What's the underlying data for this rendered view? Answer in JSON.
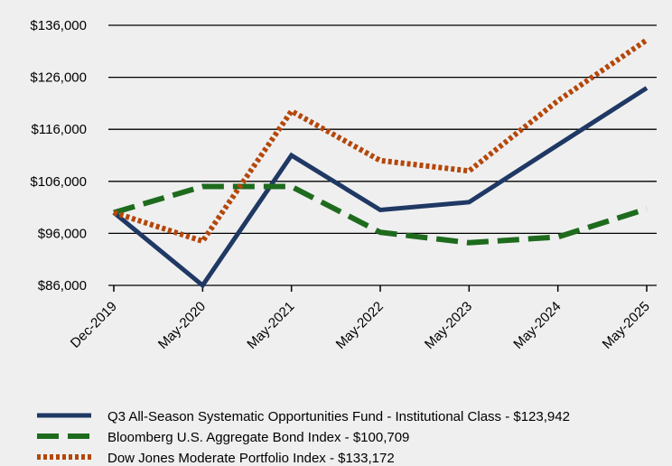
{
  "chart_data": {
    "type": "line",
    "title": "",
    "xlabel": "",
    "ylabel": "",
    "categories": [
      "Dec-2019",
      "May-2020",
      "May-2021",
      "May-2022",
      "May-2023",
      "May-2024",
      "May-2025"
    ],
    "y_ticks": [
      "$86,000",
      "$96,000",
      "$106,000",
      "$116,000",
      "$126,000",
      "$136,000"
    ],
    "ylim": [
      86000,
      136000
    ],
    "grid": "horizontal",
    "legend_position": "bottom",
    "series": [
      {
        "name": "Q3 All-Season Systematic Opportunities Fund - Institutional Class - $123,942",
        "color": "#1f3864",
        "style": "solid",
        "values": [
          100000,
          86000,
          111000,
          100500,
          102000,
          113000,
          123942
        ]
      },
      {
        "name": "Bloomberg U.S. Aggregate Bond Index - $100,709",
        "color": "#1e6b1e",
        "style": "dashed",
        "values": [
          100000,
          105000,
          105000,
          96200,
          94200,
          95300,
          100709
        ]
      },
      {
        "name": "Dow Jones Moderate Portfolio Index - $133,172",
        "color": "#b4470a",
        "style": "dotted",
        "values": [
          100000,
          94500,
          119500,
          110000,
          108000,
          121500,
          133172
        ]
      }
    ]
  }
}
